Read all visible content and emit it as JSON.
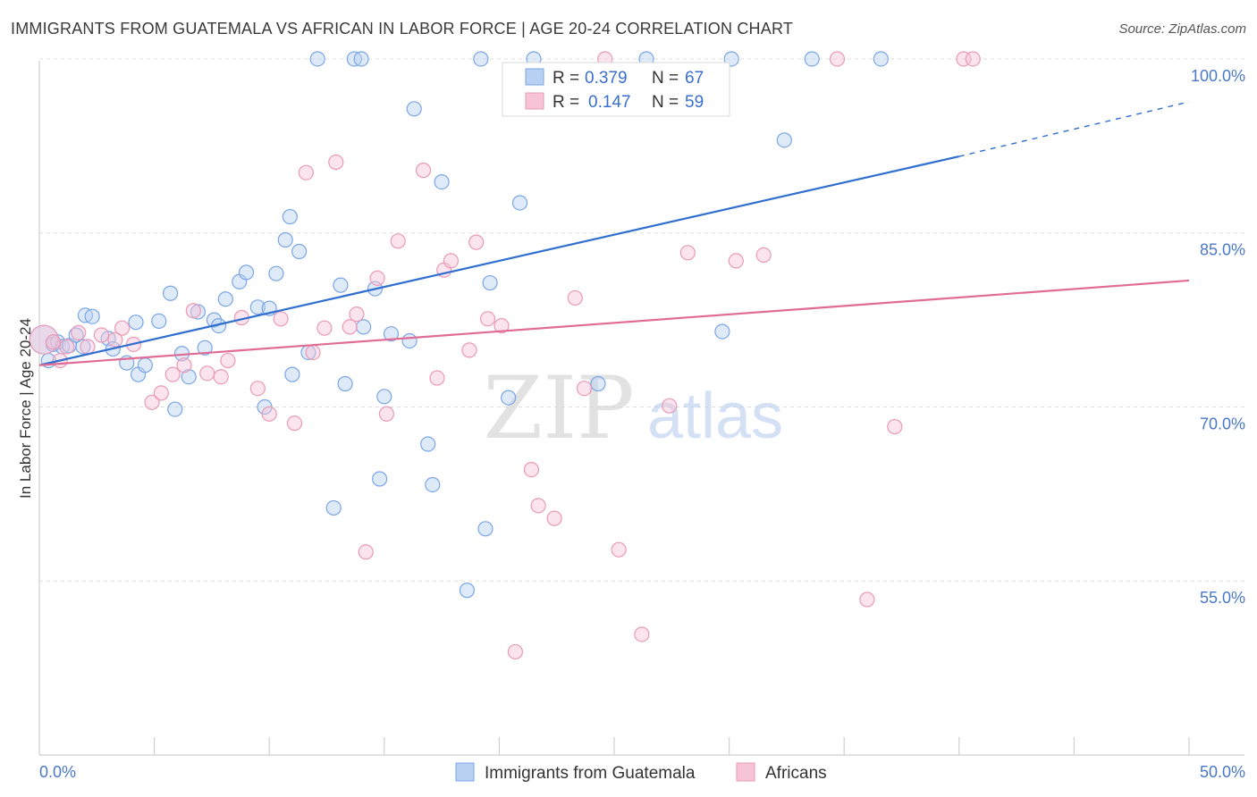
{
  "chart_data": {
    "type": "scatter",
    "title": "IMMIGRANTS FROM GUATEMALA VS AFRICAN IN LABOR FORCE | AGE 20-24 CORRELATION CHART",
    "source": "Source: ZipAtlas.com",
    "ylabel": "In Labor Force | Age 20-24",
    "xlim": [
      0,
      50
    ],
    "ylim": [
      40,
      102
    ],
    "x_tick_labels": [
      "0.0%",
      "50.0%"
    ],
    "x_tick_values": [
      0,
      50
    ],
    "y_tick_labels": [
      "100.0%",
      "85.0%",
      "70.0%",
      "55.0%"
    ],
    "y_tick_values": [
      100,
      85,
      70,
      55
    ],
    "watermark": {
      "zip": "ZIP",
      "atlas": "atlas"
    },
    "legend": [
      {
        "r_label": "R =",
        "r_value": "0.379",
        "n_label": "N =",
        "n_value": "67"
      },
      {
        "r_label": "R =",
        "r_value": "0.147",
        "n_label": "N =",
        "n_value": "59"
      }
    ],
    "series": [
      {
        "name": "Immigrants from Guatemala",
        "color": "#7aa6e6",
        "fill": "#b8d0f2",
        "line_color": "#2f6fd0",
        "trend": {
          "x0": 0,
          "y0": 73.6,
          "x1": 40,
          "y1": 91.6,
          "dash_x1": 50,
          "dash_y1": 96.3
        },
        "points": [
          [
            0.2,
            75.8
          ],
          [
            0.4,
            74
          ],
          [
            0.6,
            75.4
          ],
          [
            0.8,
            75.6
          ],
          [
            1.0,
            75.2
          ],
          [
            1.3,
            75.3
          ],
          [
            1.6,
            76.2
          ],
          [
            2.0,
            77.9
          ],
          [
            2.3,
            77.8
          ],
          [
            1.9,
            75.2
          ],
          [
            3.0,
            75.9
          ],
          [
            3.2,
            75
          ],
          [
            3.8,
            73.8
          ],
          [
            4.3,
            72.8
          ],
          [
            4.6,
            73.6
          ],
          [
            4.2,
            77.3
          ],
          [
            5.2,
            77.4
          ],
          [
            5.7,
            79.8
          ],
          [
            5.9,
            69.8
          ],
          [
            6.2,
            74.6
          ],
          [
            6.5,
            72.6
          ],
          [
            6.9,
            78.2
          ],
          [
            7.2,
            75.1
          ],
          [
            7.6,
            77.5
          ],
          [
            7.8,
            77
          ],
          [
            8.1,
            79.3
          ],
          [
            8.7,
            80.8
          ],
          [
            9.0,
            81.6
          ],
          [
            9.5,
            78.6
          ],
          [
            9.8,
            70
          ],
          [
            10.0,
            78.5
          ],
          [
            10.3,
            81.5
          ],
          [
            10.7,
            84.4
          ],
          [
            10.9,
            86.4
          ],
          [
            11.3,
            83.4
          ],
          [
            11.0,
            72.8
          ],
          [
            11.7,
            74.7
          ],
          [
            12.1,
            100
          ],
          [
            12.8,
            61.3
          ],
          [
            13.1,
            80.5
          ],
          [
            13.3,
            72
          ],
          [
            13.7,
            100
          ],
          [
            14.0,
            100
          ],
          [
            14.1,
            76.9
          ],
          [
            14.6,
            80.2
          ],
          [
            14.8,
            63.8
          ],
          [
            15.0,
            70.9
          ],
          [
            15.3,
            76.3
          ],
          [
            16.1,
            75.7
          ],
          [
            16.3,
            95.7
          ],
          [
            16.9,
            66.8
          ],
          [
            17.1,
            63.3
          ],
          [
            17.5,
            89.4
          ],
          [
            18.6,
            54.2
          ],
          [
            19.2,
            100
          ],
          [
            19.4,
            59.5
          ],
          [
            19.6,
            80.7
          ],
          [
            20.4,
            70.8
          ],
          [
            20.9,
            87.6
          ],
          [
            21.5,
            100
          ],
          [
            24.3,
            72
          ],
          [
            26.4,
            100
          ],
          [
            29.7,
            76.5
          ],
          [
            30.1,
            100
          ],
          [
            32.4,
            93
          ],
          [
            33.6,
            100
          ],
          [
            36.6,
            100
          ]
        ]
      },
      {
        "name": "Africans",
        "color": "#e99ab6",
        "fill": "#f6c4d6",
        "line_color": "#e06b95",
        "trend": {
          "x0": 0,
          "y0": 73.6,
          "x1": 50,
          "y1": 80.9
        },
        "points": [
          [
            0.2,
            75.8
          ],
          [
            0.6,
            75.6
          ],
          [
            0.9,
            74
          ],
          [
            1.2,
            75.2
          ],
          [
            1.7,
            76.4
          ],
          [
            2.1,
            75.2
          ],
          [
            2.7,
            76.2
          ],
          [
            3.3,
            75.8
          ],
          [
            3.6,
            76.8
          ],
          [
            4.1,
            75.4
          ],
          [
            4.9,
            70.4
          ],
          [
            5.3,
            71.2
          ],
          [
            5.8,
            72.8
          ],
          [
            6.3,
            73.6
          ],
          [
            6.7,
            78.3
          ],
          [
            7.3,
            72.9
          ],
          [
            7.9,
            72.6
          ],
          [
            8.2,
            74
          ],
          [
            8.8,
            77.7
          ],
          [
            9.5,
            71.6
          ],
          [
            10.0,
            69.4
          ],
          [
            10.5,
            77.6
          ],
          [
            11.1,
            68.6
          ],
          [
            11.6,
            90.2
          ],
          [
            11.9,
            74.7
          ],
          [
            12.4,
            76.8
          ],
          [
            12.9,
            91.1
          ],
          [
            13.5,
            76.9
          ],
          [
            13.8,
            78
          ],
          [
            14.2,
            57.5
          ],
          [
            14.7,
            81.1
          ],
          [
            15.1,
            69.4
          ],
          [
            15.6,
            84.3
          ],
          [
            16.7,
            90.4
          ],
          [
            17.3,
            72.5
          ],
          [
            17.6,
            81.8
          ],
          [
            17.9,
            82.6
          ],
          [
            18.7,
            74.9
          ],
          [
            19.0,
            84.2
          ],
          [
            19.5,
            77.6
          ],
          [
            20.1,
            77
          ],
          [
            20.7,
            48.9
          ],
          [
            21.4,
            64.6
          ],
          [
            21.7,
            61.5
          ],
          [
            22.4,
            60.4
          ],
          [
            23.3,
            79.4
          ],
          [
            23.7,
            71.6
          ],
          [
            24.6,
            100
          ],
          [
            25.2,
            57.7
          ],
          [
            26.2,
            50.4
          ],
          [
            27.4,
            70.1
          ],
          [
            28.2,
            83.3
          ],
          [
            30.3,
            82.6
          ],
          [
            31.5,
            83.1
          ],
          [
            34.7,
            100
          ],
          [
            36.0,
            53.4
          ],
          [
            37.2,
            68.3
          ],
          [
            40.2,
            100
          ],
          [
            40.6,
            100
          ]
        ]
      }
    ]
  }
}
